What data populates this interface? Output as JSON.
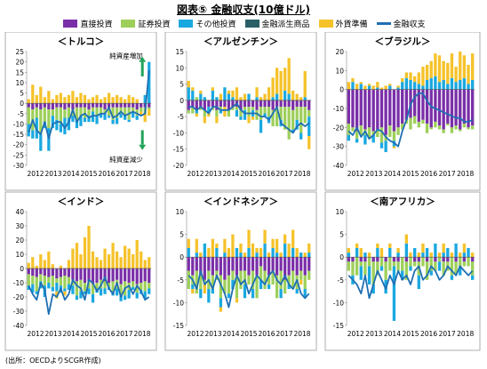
{
  "title": "図表⑤  金融収支(10億ドル)",
  "note": "(出所：OECDよりSCGR作成)",
  "colors": {
    "direct": "#7a2fa8",
    "portfolio": "#9dcf5a",
    "other": "#1aa8e0",
    "derivative": "#2b5f66",
    "reserve": "#f5c22a",
    "financial": "#1f6fb3"
  },
  "legend": [
    {
      "key": "direct",
      "label": "直接投資",
      "kind": "bar"
    },
    {
      "key": "portfolio",
      "label": "証券投資",
      "kind": "bar"
    },
    {
      "key": "other",
      "label": "その他投資",
      "kind": "bar"
    },
    {
      "key": "derivative",
      "label": "金融派生商品",
      "kind": "bar"
    },
    {
      "key": "reserve",
      "label": "外貨準備",
      "kind": "bar"
    },
    {
      "key": "financial",
      "label": "金融収支",
      "kind": "line"
    }
  ],
  "chart_data": [
    {
      "type": "bar",
      "stacked": true,
      "title": "＜トルコ＞",
      "ylim": [
        -30,
        25
      ],
      "yticks": [
        -30,
        -25,
        -20,
        -15,
        -10,
        -5,
        0,
        5,
        10,
        15,
        20,
        25
      ],
      "years": [
        "2012",
        "2013",
        "2014",
        "2015",
        "2016",
        "2017",
        "2018"
      ],
      "series": {
        "direct": [
          -2,
          -3,
          -2,
          -3,
          -2,
          -3,
          -3,
          -2,
          -2,
          -3,
          -2,
          -3,
          -2,
          -2,
          -2,
          -3,
          -2,
          -2,
          -2,
          -3,
          -2,
          -2,
          -2,
          -2,
          -2,
          -2,
          -2,
          -3,
          -2,
          -2,
          -2
        ],
        "portfolio": [
          -8,
          -10,
          -5,
          -12,
          -7,
          -9,
          -3,
          -6,
          -8,
          -4,
          -5,
          -3,
          -6,
          -4,
          -5,
          -3,
          -2,
          -4,
          -3,
          -2,
          -4,
          -6,
          -5,
          -3,
          -4,
          -6,
          -2,
          -3,
          -2,
          -3,
          -1
        ],
        "other": [
          -6,
          -4,
          -10,
          -8,
          -3,
          -11,
          -6,
          -5,
          -4,
          -8,
          -6,
          -3,
          -4,
          -5,
          -2,
          -3,
          -5,
          -4,
          -2,
          -3,
          -1,
          -2,
          -3,
          -2,
          -2,
          -1,
          -3,
          -2,
          0,
          4,
          20
        ],
        "derivative": [
          0,
          0,
          0,
          0,
          0,
          0,
          0,
          0,
          0,
          0,
          0,
          0,
          0,
          0,
          0,
          0,
          0,
          0,
          0,
          0,
          0,
          0,
          0,
          0,
          0,
          0,
          0,
          0,
          0,
          0,
          0
        ],
        "reserve": [
          2,
          9,
          4,
          8,
          3,
          6,
          2,
          4,
          5,
          3,
          4,
          6,
          3,
          5,
          4,
          2,
          3,
          4,
          2,
          3,
          5,
          3,
          4,
          3,
          2,
          4,
          3,
          2,
          -2,
          -4,
          -3
        ]
      },
      "financial": [
        -14,
        -8,
        -13,
        -15,
        -9,
        -17,
        -10,
        -9,
        -9,
        -12,
        -9,
        -3,
        -9,
        -6,
        -5,
        -7,
        -6,
        -6,
        -5,
        -5,
        -2,
        -7,
        -6,
        -4,
        -6,
        -5,
        -4,
        -5,
        -6,
        -5,
        16
      ],
      "annotations": [
        {
          "text": "純資産増加",
          "x": 0.8,
          "y": 23,
          "arrow": "up",
          "ax": 0.93,
          "ay1": 13,
          "ay2": 20
        },
        {
          "text": "純資産減少",
          "x": 0.8,
          "y": -27,
          "arrow": "down",
          "ax": 0.93,
          "ay1": -13,
          "ay2": -20
        }
      ]
    },
    {
      "type": "bar",
      "stacked": true,
      "title": "＜アルゼンチン＞",
      "ylim": [
        -20,
        15
      ],
      "yticks": [
        -20,
        -15,
        -10,
        -5,
        0,
        5,
        10,
        15
      ],
      "years": [
        "2012",
        "2013",
        "2014",
        "2015",
        "2016",
        "2017",
        "2018"
      ],
      "series": {
        "direct": [
          -3,
          -2,
          -3,
          -2,
          -3,
          -2,
          -2,
          -3,
          -2,
          -2,
          -3,
          -2,
          -2,
          -3,
          -2,
          -2,
          -2,
          -3,
          -2,
          -2,
          -2,
          -3,
          -2,
          -2,
          -2,
          -2,
          -3,
          -2,
          -2,
          -2,
          -3
        ],
        "portfolio": [
          -1,
          -2,
          1,
          -1,
          -2,
          0,
          -1,
          -2,
          -1,
          0,
          -2,
          -1,
          -1,
          -2,
          -1,
          -3,
          -1,
          -3,
          -4,
          -2,
          -3,
          -5,
          -6,
          -4,
          -7,
          -10,
          -6,
          -4,
          -8,
          -5,
          -2
        ],
        "other": [
          4,
          3,
          -1,
          2,
          1,
          -2,
          3,
          1,
          -1,
          4,
          2,
          1,
          -2,
          -1,
          -3,
          2,
          -2,
          1,
          -4,
          -1,
          -2,
          1,
          2,
          -2,
          3,
          2,
          -1,
          -3,
          -2,
          1,
          -6
        ],
        "derivative": [
          0,
          0,
          0,
          0,
          0,
          0,
          0,
          0,
          0,
          0,
          0,
          0,
          0,
          0,
          0,
          0,
          0,
          0,
          0,
          0,
          0,
          0,
          0,
          0,
          0,
          0,
          0,
          0,
          0,
          0,
          0
        ],
        "reserve": [
          2,
          1,
          -1,
          1,
          -2,
          -1,
          1,
          -2,
          2,
          -3,
          1,
          2,
          4,
          1,
          2,
          -2,
          -1,
          3,
          1,
          2,
          4,
          6,
          8,
          9,
          7,
          11,
          3,
          2,
          1,
          8,
          -4
        ]
      },
      "financial": [
        -2,
        -2,
        -3,
        -2,
        -3,
        -4,
        -2,
        -2,
        -3,
        -3,
        -3,
        -2,
        -1,
        -3,
        -4,
        -4,
        -4,
        -4,
        -5,
        -5,
        -6,
        -4,
        -2,
        -7,
        -8,
        -9,
        -10,
        -8,
        -7,
        -8,
        -7
      ]
    },
    {
      "type": "bar",
      "stacked": true,
      "title": "＜ブラジル＞",
      "ylim": [
        -40,
        20
      ],
      "yticks": [
        -40,
        -30,
        -20,
        -10,
        0,
        10,
        20
      ],
      "years": [
        "2012",
        "2013",
        "2014",
        "2015",
        "2016",
        "2017",
        "2018"
      ],
      "series": {
        "direct": [
          -18,
          -20,
          -22,
          -19,
          -21,
          -20,
          -22,
          -21,
          -20,
          -24,
          -19,
          -22,
          -20,
          -18,
          -16,
          -15,
          -14,
          -17,
          -16,
          -18,
          -20,
          -17,
          -19,
          -21,
          -18,
          -20,
          -19,
          -21,
          -18,
          -20,
          -19
        ],
        "portfolio": [
          -6,
          -2,
          -4,
          -5,
          -3,
          -6,
          -2,
          -4,
          -8,
          -3,
          -6,
          -5,
          -4,
          -3,
          -2,
          -6,
          -4,
          -3,
          -2,
          -5,
          -1,
          -3,
          -2,
          -2,
          -1,
          -3,
          -2,
          -1,
          -2,
          -1,
          -2
        ],
        "other": [
          -3,
          4,
          -2,
          3,
          -5,
          2,
          -4,
          1,
          -3,
          -6,
          2,
          -3,
          1,
          4,
          6,
          5,
          4,
          3,
          2,
          5,
          6,
          7,
          4,
          5,
          3,
          6,
          4,
          5,
          6,
          3,
          5
        ],
        "derivative": [
          0,
          0,
          0,
          0,
          0,
          0,
          0,
          0,
          0,
          0,
          0,
          0,
          0,
          0,
          0,
          0,
          0,
          0,
          0,
          0,
          0,
          0,
          0,
          0,
          0,
          0,
          0,
          0,
          0,
          0,
          0
        ],
        "reserve": [
          4,
          2,
          3,
          1,
          2,
          1,
          2,
          3,
          1,
          2,
          1,
          -1,
          1,
          2,
          3,
          4,
          3,
          6,
          10,
          8,
          9,
          12,
          14,
          10,
          11,
          13,
          8,
          15,
          12,
          10,
          14
        ]
      },
      "financial": [
        -22,
        -24,
        -20,
        -25,
        -22,
        -26,
        -24,
        -21,
        -22,
        -25,
        -27,
        -28,
        -30,
        -22,
        -16,
        -8,
        -4,
        -2,
        -2,
        -6,
        -9,
        -10,
        -11,
        -12,
        -13,
        -14,
        -15,
        -15,
        -17,
        -17,
        -16
      ]
    },
    {
      "type": "bar",
      "stacked": true,
      "title": "＜インド＞",
      "ylim": [
        -40,
        40
      ],
      "yticks": [
        -40,
        -30,
        -20,
        -10,
        0,
        10,
        20,
        30,
        40
      ],
      "years": [
        "2012",
        "2013",
        "2014",
        "2015",
        "2016",
        "2017",
        "2018"
      ],
      "series": {
        "direct": [
          -4,
          -5,
          -6,
          -4,
          -5,
          -6,
          -5,
          -7,
          -6,
          -5,
          -6,
          -8,
          -9,
          -8,
          -10,
          -9,
          -11,
          -10,
          -8,
          -9,
          -10,
          -9,
          -8,
          -11,
          -9,
          -10,
          -9,
          -11,
          -10,
          -9,
          -10
        ],
        "portfolio": [
          -8,
          -6,
          -10,
          -5,
          -7,
          -4,
          -8,
          -3,
          -6,
          -9,
          -5,
          -4,
          -10,
          -8,
          -6,
          -5,
          -7,
          -4,
          -6,
          -5,
          -3,
          -7,
          -6,
          -8,
          -10,
          -5,
          -4,
          -6,
          -5,
          -7,
          -4
        ],
        "other": [
          -3,
          -6,
          -2,
          -5,
          -8,
          -4,
          -3,
          -6,
          -5,
          -2,
          -4,
          -6,
          -3,
          -5,
          -2,
          -4,
          -6,
          -3,
          -5,
          -4,
          -2,
          -3,
          -5,
          -4,
          -3,
          -6,
          -2,
          -4,
          -3,
          -5,
          -4
        ],
        "derivative": [
          0,
          0,
          0,
          0,
          0,
          0,
          0,
          0,
          0,
          0,
          0,
          0,
          0,
          0,
          0,
          0,
          0,
          0,
          0,
          0,
          0,
          0,
          0,
          0,
          0,
          0,
          0,
          0,
          0,
          0,
          0
        ],
        "reserve": [
          4,
          8,
          2,
          10,
          6,
          12,
          3,
          -5,
          2,
          -3,
          6,
          14,
          18,
          10,
          22,
          30,
          12,
          8,
          6,
          14,
          10,
          18,
          12,
          8,
          16,
          14,
          10,
          20,
          12,
          6,
          8
        ]
      },
      "financial": [
        -12,
        -18,
        -22,
        -10,
        -15,
        -32,
        -18,
        -20,
        -14,
        -22,
        -18,
        -8,
        -12,
        -14,
        -22,
        -8,
        -10,
        -16,
        -12,
        -6,
        -14,
        -18,
        -10,
        -20,
        -14,
        -12,
        -18,
        -12,
        -16,
        -22,
        -20
      ]
    },
    {
      "type": "bar",
      "stacked": true,
      "title": "＜インドネシア＞",
      "ylim": [
        -15,
        10
      ],
      "yticks": [
        -15,
        -10,
        -5,
        0,
        5,
        10
      ],
      "years": [
        "2012",
        "2013",
        "2014",
        "2015",
        "2016",
        "2017",
        "2018"
      ],
      "series": {
        "direct": [
          -3,
          -4,
          -3,
          -4,
          -5,
          -3,
          -4,
          -3,
          -4,
          -5,
          -4,
          -3,
          -4,
          -3,
          -3,
          -4,
          -3,
          -4,
          -2,
          -3,
          -4,
          -3,
          -4,
          -3,
          -5,
          -4,
          -3,
          -4,
          -3,
          -4,
          -3
        ],
        "portfolio": [
          -4,
          -2,
          -5,
          -3,
          -1,
          -4,
          -3,
          -2,
          -5,
          -3,
          -4,
          -2,
          -5,
          -4,
          -3,
          -2,
          -4,
          -5,
          -3,
          -4,
          -2,
          -3,
          -5,
          -4,
          -3,
          -2,
          -4,
          -3,
          -2,
          -3,
          -2
        ],
        "other": [
          2,
          -1,
          1,
          -2,
          3,
          -3,
          -1,
          2,
          -2,
          1,
          -1,
          -2,
          2,
          1,
          -3,
          2,
          -2,
          1,
          -2,
          3,
          -1,
          2,
          1,
          -2,
          3,
          -1,
          2,
          -1,
          1,
          -2,
          1
        ],
        "derivative": [
          0,
          0,
          0,
          0,
          0,
          0,
          0,
          0,
          0,
          0,
          0,
          0,
          0,
          0,
          0,
          0,
          0,
          0,
          0,
          0,
          0,
          0,
          0,
          0,
          0,
          0,
          0,
          0,
          0,
          0,
          0
        ],
        "reserve": [
          2,
          -1,
          3,
          1,
          -2,
          2,
          4,
          1,
          -1,
          3,
          2,
          5,
          -1,
          2,
          1,
          4,
          3,
          1,
          2,
          3,
          1,
          2,
          3,
          1,
          2,
          3,
          4,
          2,
          -1,
          1,
          2
        ]
      },
      "financial": [
        -4,
        -5,
        -7,
        -3,
        -6,
        -5,
        -7,
        -4,
        -6,
        -8,
        -11,
        -7,
        -4,
        -6,
        -5,
        -8,
        -6,
        -4,
        -5,
        -6,
        -4,
        -3,
        -5,
        -6,
        -4,
        -6,
        -7,
        -5,
        -8,
        -9,
        -8
      ]
    },
    {
      "type": "bar",
      "stacked": true,
      "title": "＜南アフリカ＞",
      "ylim": [
        -15,
        10
      ],
      "yticks": [
        -15,
        -10,
        -5,
        0,
        5,
        10
      ],
      "years": [
        "2012",
        "2013",
        "2014",
        "2015",
        "2016",
        "2017",
        "2018"
      ],
      "series": {
        "direct": [
          -1,
          -1,
          0,
          -1,
          -1,
          0,
          -1,
          -1,
          0,
          -1,
          0,
          -1,
          -1,
          0,
          -1,
          0,
          -1,
          -1,
          0,
          -1,
          0,
          -1,
          0,
          -1,
          -1,
          0,
          -1,
          0,
          -1,
          0,
          -1
        ],
        "portfolio": [
          -2,
          -3,
          -4,
          -1,
          -3,
          -2,
          -5,
          -3,
          -2,
          -4,
          -3,
          -1,
          -2,
          -3,
          -4,
          -2,
          -1,
          -3,
          -2,
          -4,
          -3,
          -2,
          -1,
          -3,
          -2,
          -4,
          -3,
          -2,
          -1,
          -2,
          -3
        ],
        "other": [
          1,
          -2,
          2,
          -3,
          1,
          -4,
          -2,
          2,
          -1,
          -3,
          2,
          -12,
          1,
          -2,
          3,
          -1,
          2,
          -3,
          1,
          2,
          -1,
          3,
          -2,
          1,
          2,
          -1,
          3,
          -2,
          1,
          2,
          -1
        ],
        "derivative": [
          0,
          0,
          0,
          0,
          0,
          0,
          0,
          0,
          0,
          0,
          0,
          0,
          0,
          0,
          0,
          0,
          0,
          0,
          0,
          0,
          0,
          0,
          0,
          0,
          0,
          0,
          0,
          0,
          0,
          0,
          0
        ],
        "reserve": [
          1,
          0,
          1,
          2,
          0,
          1,
          0,
          1,
          2,
          0,
          1,
          0,
          1,
          0,
          2,
          1,
          0,
          1,
          2,
          0,
          1,
          0,
          1,
          2,
          0,
          1,
          0,
          1,
          2,
          0,
          1
        ]
      },
      "financial": [
        -4,
        -5,
        -6,
        -8,
        -4,
        -9,
        -6,
        -3,
        -5,
        -7,
        -4,
        -6,
        -3,
        -5,
        -4,
        -6,
        -3,
        -2,
        -5,
        -4,
        -2,
        -3,
        -5,
        -4,
        -2,
        -3,
        -4,
        -2,
        -3,
        -4,
        -3
      ]
    }
  ]
}
